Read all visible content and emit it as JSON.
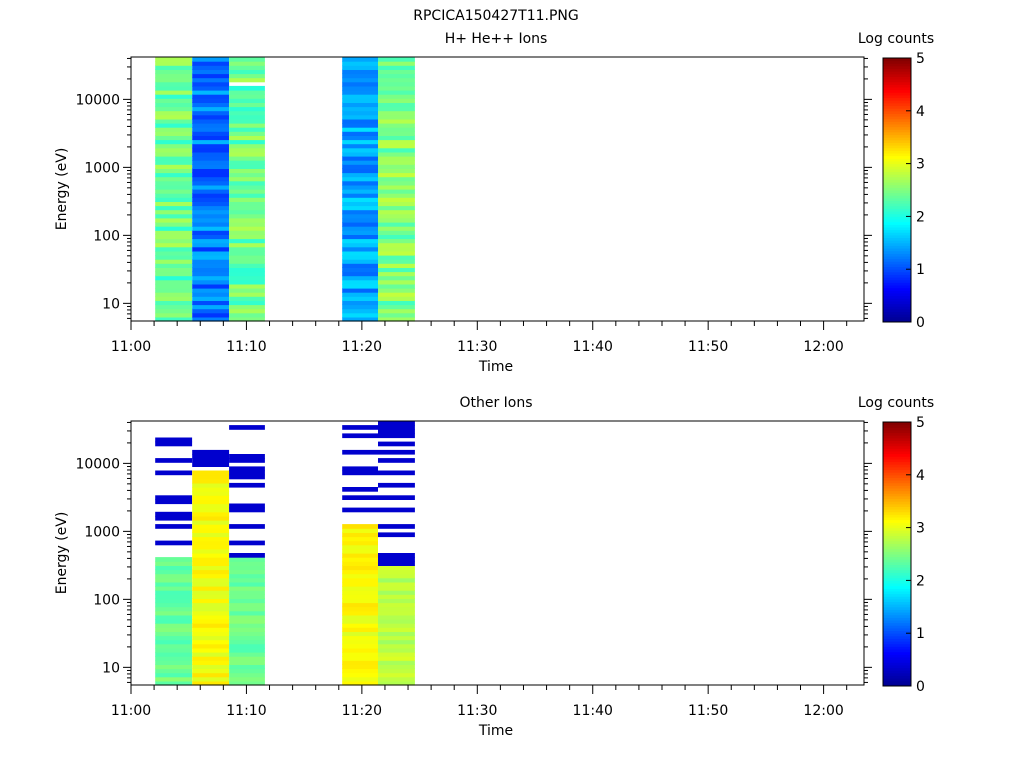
{
  "figure_title": "RPCICA150427T11.PNG",
  "colormap": [
    "#00008f",
    "#0000ff",
    "#0080ff",
    "#00ffff",
    "#80ff80",
    "#ffff00",
    "#ff8000",
    "#ff0000",
    "#800000"
  ],
  "chart_data": [
    {
      "type": "heatmap",
      "title": "H+ He++ Ions",
      "xlabel": "Time",
      "ylabel": "Energy (eV)",
      "x_ticks": [
        "11:00",
        "11:10",
        "11:20",
        "11:30",
        "11:40",
        "11:50",
        "12:00"
      ],
      "xlim_minutes": [
        0,
        63.5
      ],
      "y_scale": "log",
      "y_ticks": [
        "10",
        "100",
        "1000",
        "10000"
      ],
      "ylim": [
        5.5,
        42000
      ],
      "colorbar": {
        "label": "Log counts",
        "ticks": [
          "0",
          "1",
          "2",
          "3",
          "4",
          "5"
        ],
        "range": [
          0,
          5
        ]
      },
      "sweeps": [
        {
          "start": 2.1,
          "end": 5.3,
          "data": [
            [
              20,
              2.4
            ],
            [
              1.8,
              1.0
            ],
            [
              0.6,
              1.2
            ],
            [
              0.7,
              1.4
            ],
            [
              0.5,
              1.0
            ],
            [
              0.1,
              0.9
            ],
            [
              3,
              0.7
            ]
          ]
        },
        {
          "start": 5.3,
          "end": 8.5,
          "data": [
            [
              20,
              1.2
            ],
            [
              1.8,
              1.5
            ],
            [
              0.4,
              1.4
            ],
            [
              0.5,
              1.9
            ],
            [
              0.5,
              1.4
            ],
            [
              0.15,
              1.2
            ],
            [
              3,
              1.0
            ]
          ]
        },
        {
          "start": 8.5,
          "end": 11.6,
          "data": [
            [
              20,
              2.4
            ],
            [
              1.8,
              1.6
            ],
            [
              0.5,
              1.1
            ],
            [
              0.6,
              1.2
            ],
            [
              0.5,
              0.9
            ],
            [
              0.1,
              0.8
            ],
            [
              3,
              0.7
            ]
          ],
          "gaps": [
            18000
          ]
        },
        {
          "start": 18.3,
          "end": 21.4,
          "data": [
            [
              20,
              1.4
            ],
            [
              1.7,
              1.2
            ],
            [
              0.4,
              1.1
            ],
            [
              0.6,
              1.3
            ],
            [
              0.5,
              1.1
            ],
            [
              0.15,
              1.2
            ],
            [
              3,
              1.0
            ]
          ]
        },
        {
          "start": 21.4,
          "end": 24.6,
          "data": [
            [
              20,
              2.5
            ],
            [
              1.8,
              1.9
            ],
            [
              0.6,
              1.2
            ],
            [
              0.8,
              0.8
            ],
            [
              0.5,
              0.8
            ],
            [
              0.1,
              0.7
            ],
            [
              3,
              0.6
            ]
          ]
        }
      ]
    },
    {
      "type": "heatmap",
      "title": "Other Ions",
      "xlabel": "Time",
      "ylabel": "Energy (eV)",
      "x_ticks": [
        "11:00",
        "11:10",
        "11:20",
        "11:30",
        "11:40",
        "11:50",
        "12:00"
      ],
      "xlim_minutes": [
        0,
        63.5
      ],
      "y_scale": "log",
      "y_ticks": [
        "10",
        "100",
        "1000",
        "10000"
      ],
      "ylim": [
        5.5,
        42000
      ],
      "colorbar": {
        "label": "Log counts",
        "ticks": [
          "0",
          "1",
          "2",
          "3",
          "4",
          "5"
        ],
        "range": [
          0,
          5
        ]
      },
      "sweeps": [
        {
          "start": 2.1,
          "end": 5.3,
          "data": [
            [
              15,
              2.4
            ],
            [
              1.6,
              1.3
            ],
            [
              0.5,
              0.6
            ]
          ],
          "sparse_above": 400
        },
        {
          "start": 5.3,
          "end": 8.5,
          "data": [
            [
              15,
              3.1
            ],
            [
              1.6,
              1.9
            ],
            [
              0.5,
              0.8
            ]
          ],
          "sparse_above": 8000
        },
        {
          "start": 8.5,
          "end": 11.6,
          "data": [
            [
              15,
              2.4
            ],
            [
              1.6,
              1.5
            ],
            [
              0.5,
              0.6
            ]
          ],
          "sparse_above": 400
        },
        {
          "start": 18.3,
          "end": 21.4,
          "data": [
            [
              15,
              3.1
            ],
            [
              1.6,
              1.7
            ],
            [
              0.5,
              0.6
            ]
          ],
          "sparse_above": 1200
        },
        {
          "start": 21.4,
          "end": 24.6,
          "data": [
            [
              15,
              2.8
            ],
            [
              1.6,
              1.3
            ],
            [
              0.5,
              0.4
            ]
          ],
          "sparse_above": 300
        }
      ]
    }
  ]
}
